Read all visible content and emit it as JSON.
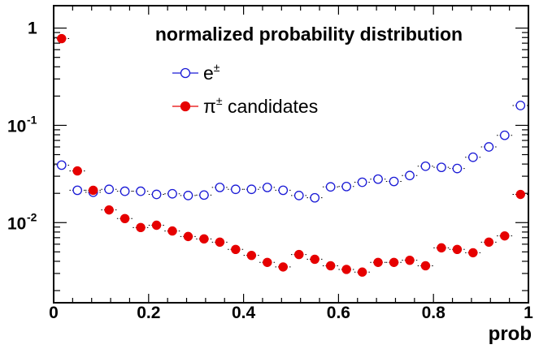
{
  "chart_data": {
    "type": "scatter",
    "title": "normalized probability distribution",
    "xlabel": "prob",
    "ylabel": "",
    "xlim": [
      0,
      1
    ],
    "ylim": [
      0.0015,
      1.7
    ],
    "yscale": "log",
    "x_ticks": [
      {
        "value": 0,
        "label": "0"
      },
      {
        "value": 0.2,
        "label": "0.2"
      },
      {
        "value": 0.4,
        "label": "0.4"
      },
      {
        "value": 0.6,
        "label": "0.6"
      },
      {
        "value": 0.8,
        "label": "0.8"
      },
      {
        "value": 1,
        "label": "1"
      }
    ],
    "y_ticks": [
      {
        "value": 1,
        "base": "1",
        "exp": ""
      },
      {
        "value": 0.1,
        "base": "10",
        "exp": "-1"
      },
      {
        "value": 0.01,
        "base": "10",
        "exp": "-2"
      }
    ],
    "legend_placement": "top-center",
    "grid": false,
    "x": [
      0.0167,
      0.05,
      0.0833,
      0.1167,
      0.15,
      0.1833,
      0.2167,
      0.25,
      0.2833,
      0.3167,
      0.35,
      0.3833,
      0.4167,
      0.45,
      0.4833,
      0.5167,
      0.55,
      0.5833,
      0.6167,
      0.65,
      0.6833,
      0.7167,
      0.75,
      0.7833,
      0.8167,
      0.85,
      0.8833,
      0.9167,
      0.95,
      0.9833
    ],
    "series": [
      {
        "name": "e",
        "sup": "±",
        "marker": "open-circle",
        "color": "#1a1ad6",
        "values": [
          0.039,
          0.0215,
          0.0205,
          0.022,
          0.021,
          0.021,
          0.0195,
          0.0198,
          0.019,
          0.0192,
          0.023,
          0.022,
          0.022,
          0.023,
          0.0215,
          0.019,
          0.018,
          0.0233,
          0.0235,
          0.026,
          0.028,
          0.0265,
          0.0305,
          0.038,
          0.037,
          0.036,
          0.047,
          0.06,
          0.079,
          0.16
        ]
      },
      {
        "name": "π",
        "sup": "±",
        "suffix": " candidates",
        "marker": "filled-circle",
        "color": "#e60000",
        "values": [
          0.78,
          0.034,
          0.0215,
          0.0135,
          0.011,
          0.0089,
          0.0094,
          0.0082,
          0.0072,
          0.0068,
          0.0063,
          0.0053,
          0.0046,
          0.0039,
          0.0035,
          0.0047,
          0.0042,
          0.0036,
          0.0033,
          0.0031,
          0.0039,
          0.0039,
          0.0041,
          0.0036,
          0.0055,
          0.0053,
          0.0049,
          0.0063,
          0.0073,
          0.0195
        ]
      }
    ]
  }
}
